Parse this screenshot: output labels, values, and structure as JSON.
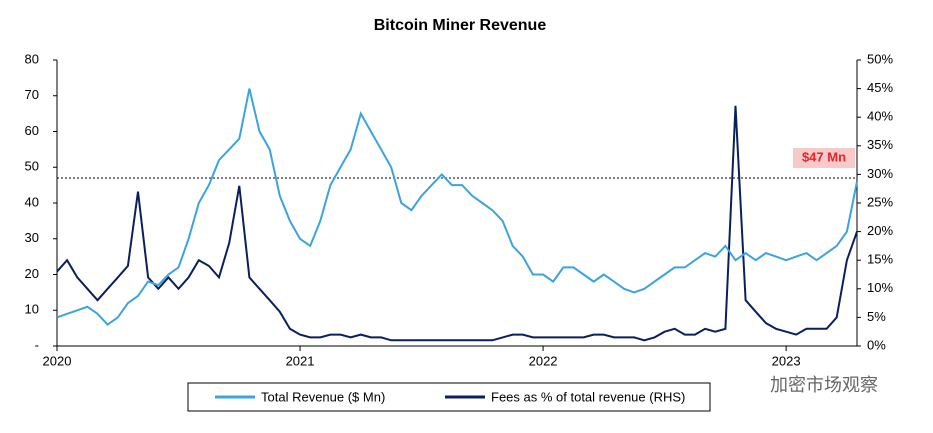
{
  "chart_data": {
    "type": "line",
    "title": "Bitcoin Miner Revenue",
    "categories": [
      "2020",
      null,
      null,
      null,
      null,
      null,
      null,
      null,
      null,
      null,
      null,
      null,
      null,
      null,
      null,
      null,
      null,
      null,
      null,
      null,
      null,
      null,
      null,
      null,
      "2021",
      null,
      null,
      null,
      null,
      null,
      null,
      null,
      null,
      null,
      null,
      null,
      null,
      null,
      null,
      null,
      null,
      null,
      null,
      null,
      null,
      null,
      null,
      null,
      "2022",
      null,
      null,
      null,
      null,
      null,
      null,
      null,
      null,
      null,
      null,
      null,
      null,
      null,
      null,
      null,
      null,
      null,
      null,
      null,
      null,
      null,
      null,
      null,
      "2023",
      null,
      null,
      null,
      null,
      null,
      null,
      null
    ],
    "series": [
      {
        "name": "Total Revenue ($ Mn)",
        "color": "#3ca4dc",
        "axis": "y",
        "values": [
          8,
          9,
          10,
          11,
          9,
          6,
          8,
          12,
          14,
          18,
          17,
          20,
          22,
          30,
          40,
          45,
          52,
          55,
          58,
          72,
          60,
          55,
          42,
          35,
          30,
          28,
          35,
          45,
          50,
          55,
          65,
          60,
          55,
          50,
          40,
          38,
          42,
          45,
          48,
          45,
          45,
          42,
          40,
          38,
          35,
          28,
          25,
          20,
          20,
          18,
          22,
          22,
          20,
          18,
          20,
          18,
          16,
          15,
          16,
          18,
          20,
          22,
          22,
          24,
          26,
          25,
          28,
          24,
          26,
          24,
          26,
          25,
          24,
          25,
          26,
          24,
          26,
          28,
          32,
          46
        ]
      },
      {
        "name": "Fees as % of total revenue (RHS)",
        "color": "#0b1f5e",
        "axis": "y2",
        "values": [
          13,
          15,
          12,
          10,
          8,
          10,
          12,
          14,
          27,
          12,
          10,
          12,
          10,
          12,
          15,
          14,
          12,
          18,
          28,
          12,
          10,
          8,
          6,
          3,
          2,
          1.5,
          1.5,
          2,
          2,
          1.5,
          2,
          1.5,
          1.5,
          1,
          1,
          1,
          1,
          1,
          1,
          1,
          1,
          1,
          1,
          1,
          1.5,
          2,
          2,
          1.5,
          1.5,
          1.5,
          1.5,
          1.5,
          1.5,
          2,
          2,
          1.5,
          1.5,
          1.5,
          1,
          1.5,
          2.5,
          3,
          2,
          2,
          3,
          2.5,
          3,
          42,
          8,
          6,
          4,
          3,
          2.5,
          2,
          3,
          3,
          3,
          5,
          15,
          20
        ]
      }
    ],
    "ylim": [
      0,
      80
    ],
    "yticks": [
      {
        "value": 0,
        "label": "-"
      },
      10,
      20,
      30,
      40,
      50,
      60,
      70,
      80
    ],
    "y2lim": [
      0,
      50
    ],
    "y2ticks": [
      {
        "value": 0,
        "label": "0%"
      },
      {
        "value": 5,
        "label": "5%"
      },
      {
        "value": 10,
        "label": "10%"
      },
      {
        "value": 15,
        "label": "15%"
      },
      {
        "value": 20,
        "label": "20%"
      },
      {
        "value": 25,
        "label": "25%"
      },
      {
        "value": 30,
        "label": "30%"
      },
      {
        "value": 35,
        "label": "35%"
      },
      {
        "value": 40,
        "label": "40%"
      },
      {
        "value": 45,
        "label": "45%"
      },
      {
        "value": 50,
        "label": "50%"
      }
    ],
    "annotation": {
      "text": "$47 Mn",
      "value": 47
    },
    "watermark": "加密市场观察",
    "legend": "bottom"
  }
}
